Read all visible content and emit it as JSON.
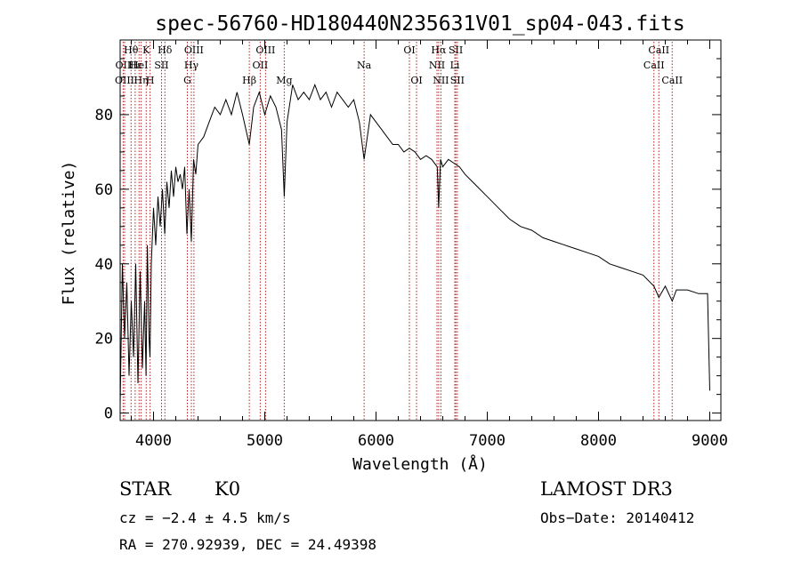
{
  "chart_data": {
    "type": "line",
    "title": "spec-56760-HD180440N235631V01_sp04-043.fits",
    "xlabel": "Wavelength (Å)",
    "ylabel": "Flux (relative)",
    "xlim": [
      3700,
      9100
    ],
    "ylim": [
      -2,
      100
    ],
    "xticks": [
      4000,
      5000,
      6000,
      7000,
      8000,
      9000
    ],
    "yticks": [
      0,
      20,
      40,
      60,
      80
    ],
    "grid": false,
    "series": [
      {
        "name": "spectrum",
        "x": [
          3700,
          3720,
          3740,
          3760,
          3780,
          3800,
          3820,
          3840,
          3860,
          3880,
          3900,
          3920,
          3933,
          3945,
          3960,
          3968,
          3980,
          4000,
          4020,
          4040,
          4060,
          4080,
          4101,
          4120,
          4140,
          4160,
          4180,
          4200,
          4220,
          4240,
          4260,
          4280,
          4300,
          4320,
          4340,
          4360,
          4380,
          4400,
          4450,
          4500,
          4550,
          4600,
          4650,
          4700,
          4750,
          4800,
          4861,
          4900,
          4950,
          5000,
          5050,
          5100,
          5150,
          5175,
          5200,
          5250,
          5300,
          5350,
          5400,
          5450,
          5500,
          5550,
          5600,
          5650,
          5700,
          5750,
          5800,
          5850,
          5893,
          5950,
          6000,
          6050,
          6100,
          6150,
          6200,
          6250,
          6300,
          6350,
          6400,
          6450,
          6500,
          6550,
          6563,
          6580,
          6600,
          6650,
          6700,
          6750,
          6800,
          6900,
          7000,
          7100,
          7200,
          7300,
          7400,
          7500,
          7600,
          7700,
          7800,
          7900,
          8000,
          8100,
          8200,
          8300,
          8400,
          8498,
          8542,
          8600,
          8662,
          8700,
          8800,
          8900,
          8980,
          9000
        ],
        "values": [
          2,
          40,
          20,
          35,
          10,
          30,
          15,
          40,
          8,
          38,
          12,
          30,
          10,
          45,
          20,
          15,
          40,
          55,
          45,
          58,
          50,
          60,
          48,
          62,
          55,
          65,
          58,
          66,
          62,
          64,
          60,
          66,
          48,
          60,
          46,
          68,
          64,
          72,
          74,
          78,
          82,
          80,
          84,
          80,
          86,
          80,
          72,
          82,
          86,
          80,
          85,
          82,
          76,
          58,
          78,
          88,
          84,
          86,
          84,
          88,
          84,
          86,
          82,
          86,
          84,
          82,
          84,
          78,
          68,
          80,
          78,
          76,
          74,
          72,
          72,
          70,
          71,
          70,
          68,
          69,
          68,
          66,
          55,
          68,
          66,
          68,
          67,
          66,
          64,
          61,
          58,
          55,
          52,
          50,
          49,
          47,
          46,
          45,
          44,
          43,
          42,
          40,
          39,
          38,
          37,
          34,
          31,
          34,
          30,
          33,
          33,
          32,
          32,
          6
        ]
      }
    ],
    "lines": [
      {
        "label": "Hθ",
        "wave": 3798,
        "row": 0
      },
      {
        "label": "OII",
        "wave": 3727,
        "row": 1
      },
      {
        "label": "OIII",
        "wave": 3740,
        "row": 2
      },
      {
        "label": "Hε",
        "wave": 3835,
        "row": 1
      },
      {
        "label": "Hη",
        "wave": 3889,
        "row": 2
      },
      {
        "label": "HeI",
        "wave": 3870,
        "row": 1
      },
      {
        "label": "K",
        "wave": 3934,
        "row": 0
      },
      {
        "label": "H",
        "wave": 3969,
        "row": 2
      },
      {
        "label": "Hδ",
        "wave": 4102,
        "row": 0
      },
      {
        "label": "SII",
        "wave": 4072,
        "row": 1
      },
      {
        "label": "OIII",
        "wave": 4363,
        "row": 0
      },
      {
        "label": "Hγ",
        "wave": 4340,
        "row": 1
      },
      {
        "label": "G",
        "wave": 4304,
        "row": 2
      },
      {
        "label": "OIII",
        "wave": 5007,
        "row": 0
      },
      {
        "label": "OII",
        "wave": 4959,
        "row": 1
      },
      {
        "label": "Hβ",
        "wave": 4861,
        "row": 2
      },
      {
        "label": "Mg",
        "wave": 5175,
        "row": 2
      },
      {
        "label": "Na",
        "wave": 5893,
        "row": 1
      },
      {
        "label": "OI",
        "wave": 6300,
        "row": 0
      },
      {
        "label": "OI",
        "wave": 6364,
        "row": 2
      },
      {
        "label": "Hα",
        "wave": 6563,
        "row": 0
      },
      {
        "label": "NII",
        "wave": 6548,
        "row": 1
      },
      {
        "label": "NII",
        "wave": 6583,
        "row": 2
      },
      {
        "label": "SII",
        "wave": 6717,
        "row": 0
      },
      {
        "label": "Li",
        "wave": 6708,
        "row": 1
      },
      {
        "label": "SII",
        "wave": 6731,
        "row": 2
      },
      {
        "label": "CaII",
        "wave": 8498,
        "row": 1
      },
      {
        "label": "CaII",
        "wave": 8542,
        "row": 0
      },
      {
        "label": "CaII",
        "wave": 8662,
        "row": 2
      }
    ]
  },
  "info": {
    "object_class": "STAR",
    "subclass": "K0",
    "survey": "LAMOST DR3",
    "cz": "cz = −2.4 ± 4.5 km/s",
    "obs_date": "Obs−Date: 20140412",
    "coords": "RA = 270.92939, DEC =  24.49398"
  },
  "colors": {
    "spectrum": "#000000",
    "line_markers": "#b22222",
    "text": "#000000"
  }
}
